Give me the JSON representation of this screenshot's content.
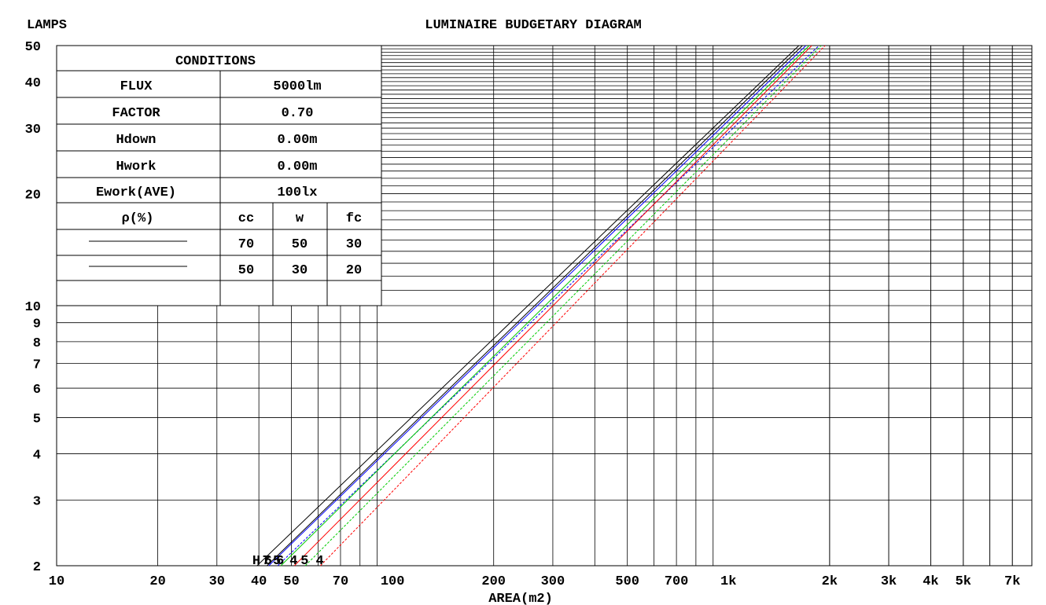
{
  "chart_data": {
    "type": "line",
    "title": "LUMINAIRE BUDGETARY DIAGRAM",
    "ylabel": "LAMPS",
    "xlabel": "AREA(m2)",
    "x_scale": "log",
    "y_scale": "log",
    "xlim": [
      10,
      8000
    ],
    "ylim": [
      2,
      50
    ],
    "x_tick_labels": [
      {
        "v": 10,
        "t": "10"
      },
      {
        "v": 20,
        "t": "20"
      },
      {
        "v": 30,
        "t": "30"
      },
      {
        "v": 40,
        "t": "40"
      },
      {
        "v": 50,
        "t": "50"
      },
      {
        "v": 70,
        "t": "70"
      },
      {
        "v": 100,
        "t": "100"
      },
      {
        "v": 200,
        "t": "200"
      },
      {
        "v": 300,
        "t": "300"
      },
      {
        "v": 500,
        "t": "500"
      },
      {
        "v": 700,
        "t": "700"
      },
      {
        "v": 1000,
        "t": "1k"
      },
      {
        "v": 2000,
        "t": "2k"
      },
      {
        "v": 3000,
        "t": "3k"
      },
      {
        "v": 4000,
        "t": "4k"
      },
      {
        "v": 5000,
        "t": "5k"
      },
      {
        "v": 7000,
        "t": "7k"
      }
    ],
    "y_tick_labels": [
      {
        "v": 2,
        "t": "2"
      },
      {
        "v": 3,
        "t": "3"
      },
      {
        "v": 4,
        "t": "4"
      },
      {
        "v": 5,
        "t": "5"
      },
      {
        "v": 6,
        "t": "6"
      },
      {
        "v": 7,
        "t": "7"
      },
      {
        "v": 8,
        "t": "8"
      },
      {
        "v": 9,
        "t": "9"
      },
      {
        "v": 10,
        "t": "10"
      },
      {
        "v": 20,
        "t": "20"
      },
      {
        "v": 30,
        "t": "30"
      },
      {
        "v": 40,
        "t": "40"
      },
      {
        "v": 50,
        "t": "50"
      }
    ],
    "grid": true,
    "series": [
      {
        "label": "H",
        "color": "#000000",
        "dashed": false,
        "x": [
          39.5,
          1620
        ],
        "y": [
          2,
          50
        ]
      },
      {
        "label": "7",
        "color": "#000000",
        "dashed": false,
        "x": [
          42.3,
          1660
        ],
        "y": [
          2,
          50
        ]
      },
      {
        "label": "6",
        "color": "#0000ff",
        "dashed": false,
        "x": [
          42.8,
          1700
        ],
        "y": [
          2,
          50
        ]
      },
      {
        "label": "5",
        "color": "#0000ff",
        "dashed": true,
        "x": [
          45.5,
          1860
        ],
        "y": [
          2,
          50
        ]
      },
      {
        "label": "6",
        "color": "#00cc00",
        "dashed": false,
        "x": [
          46.5,
          1740
        ],
        "y": [
          2,
          50
        ]
      },
      {
        "label": "4",
        "color": "#ff0000",
        "dashed": false,
        "x": [
          51,
          1770
        ],
        "y": [
          2,
          50
        ]
      },
      {
        "label": "5",
        "color": "#00cc00",
        "dashed": true,
        "x": [
          55,
          1890
        ],
        "y": [
          2,
          50
        ]
      },
      {
        "label": "4",
        "color": "#ff0000",
        "dashed": true,
        "x": [
          61,
          1940
        ],
        "y": [
          2,
          50
        ]
      }
    ],
    "conditions": {
      "heading": "CONDITIONS",
      "rows": [
        {
          "label": "FLUX",
          "value": "5000lm"
        },
        {
          "label": "FACTOR",
          "value": "0.70"
        },
        {
          "label": "Hdown",
          "value": "0.00m"
        },
        {
          "label": "Hwork",
          "value": "0.00m"
        },
        {
          "label": "Ework(AVE)",
          "value": "100lx"
        }
      ],
      "rho_label": "ρ(%)",
      "rho_headers": [
        "cc",
        "w",
        "fc"
      ],
      "rho_rows": [
        {
          "cc": "70",
          "w": "50",
          "fc": "30"
        },
        {
          "cc": "50",
          "w": "30",
          "fc": "20"
        }
      ]
    }
  }
}
